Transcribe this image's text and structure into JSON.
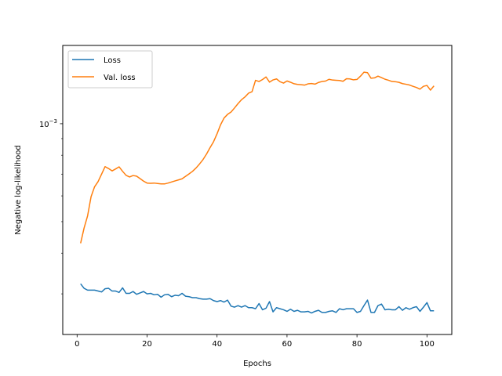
{
  "chart_data": {
    "type": "line",
    "title": "",
    "xlabel": "Epochs",
    "ylabel": "Negative log-likelihood",
    "yscale": "log",
    "xlim": [
      -4.1,
      107.1
    ],
    "ylim": [
      0.000225,
      0.00174
    ],
    "x_ticks": [
      0,
      20,
      40,
      60,
      80,
      100
    ],
    "x_tick_labels": [
      "0",
      "20",
      "40",
      "60",
      "80",
      "100"
    ],
    "y_ticks": [
      0.001
    ],
    "y_tick_labels": [
      {
        "base": "10",
        "exp": "−3"
      }
    ],
    "grid": false,
    "legend_position": "top-left",
    "series": [
      {
        "name": "Loss",
        "color": "#1f77b4",
        "x": [
          1,
          2,
          3,
          4,
          5,
          6,
          7,
          8,
          9,
          10,
          11,
          12,
          13,
          14,
          15,
          16,
          17,
          18,
          19,
          20,
          21,
          22,
          23,
          24,
          25,
          26,
          27,
          28,
          29,
          30,
          31,
          32,
          33,
          34,
          35,
          36,
          37,
          38,
          39,
          40,
          41,
          42,
          43,
          44,
          45,
          46,
          47,
          48,
          49,
          50,
          51,
          52,
          53,
          54,
          55,
          56,
          57,
          58,
          59,
          60,
          61,
          62,
          63,
          64,
          65,
          66,
          67,
          68,
          69,
          70,
          71,
          72,
          73,
          74,
          75,
          76,
          77,
          78,
          79,
          80,
          81,
          82,
          83,
          84,
          85,
          86,
          87,
          88,
          89,
          90,
          91,
          92,
          93,
          94,
          95,
          96,
          97,
          98,
          99,
          100,
          101,
          102
        ],
        "values": [
          0.000322,
          0.000312,
          0.000308,
          0.000308,
          0.000308,
          0.000306,
          0.000304,
          0.000311,
          0.000312,
          0.000306,
          0.000306,
          0.000303,
          0.000313,
          0.000301,
          0.000301,
          0.000305,
          0.000299,
          0.000302,
          0.000305,
          0.0003,
          0.000301,
          0.000298,
          0.000299,
          0.000293,
          0.000298,
          0.000299,
          0.000294,
          0.000297,
          0.000296,
          0.000301,
          0.000295,
          0.000294,
          0.000292,
          0.000292,
          0.00029,
          0.000289,
          0.000289,
          0.00029,
          0.000286,
          0.000284,
          0.000286,
          0.000283,
          0.000287,
          0.000275,
          0.000273,
          0.000276,
          0.000273,
          0.000276,
          0.000272,
          0.000272,
          0.00027,
          0.00028,
          0.000268,
          0.000271,
          0.000284,
          0.000264,
          0.000272,
          0.00027,
          0.000268,
          0.000265,
          0.000269,
          0.000265,
          0.000267,
          0.000264,
          0.000264,
          0.000265,
          0.000262,
          0.000265,
          0.000267,
          0.000263,
          0.000263,
          0.000265,
          0.000266,
          0.000263,
          0.00027,
          0.000268,
          0.00027,
          0.00027,
          0.00027,
          0.000263,
          0.000265,
          0.000276,
          0.000287,
          0.000263,
          0.000263,
          0.000276,
          0.000279,
          0.000268,
          0.000269,
          0.000268,
          0.000268,
          0.000274,
          0.000267,
          0.000272,
          0.000269,
          0.000272,
          0.000274,
          0.000265,
          0.000273,
          0.000282,
          0.000266,
          0.000266
        ]
      },
      {
        "name": "Val. loss",
        "color": "#ff7f0e",
        "x": [
          1,
          2,
          3,
          4,
          5,
          6,
          7,
          8,
          9,
          10,
          11,
          12,
          13,
          14,
          15,
          16,
          17,
          18,
          19,
          20,
          21,
          22,
          23,
          24,
          25,
          26,
          27,
          28,
          29,
          30,
          31,
          32,
          33,
          34,
          35,
          36,
          37,
          38,
          39,
          40,
          41,
          42,
          43,
          44,
          45,
          46,
          47,
          48,
          49,
          50,
          51,
          52,
          53,
          54,
          55,
          56,
          57,
          58,
          59,
          60,
          61,
          62,
          63,
          64,
          65,
          66,
          67,
          68,
          69,
          70,
          71,
          72,
          73,
          74,
          75,
          76,
          77,
          78,
          79,
          80,
          81,
          82,
          83,
          84,
          85,
          86,
          87,
          88,
          89,
          90,
          91,
          92,
          93,
          94,
          95,
          96,
          97,
          98,
          99,
          100,
          101,
          102
        ],
        "values": [
          0.000429,
          0.000478,
          0.000521,
          0.000597,
          0.00064,
          0.000664,
          0.0007,
          0.000738,
          0.000728,
          0.000716,
          0.000726,
          0.000737,
          0.000714,
          0.000694,
          0.000686,
          0.000693,
          0.00069,
          0.000678,
          0.000666,
          0.000657,
          0.000656,
          0.000657,
          0.000655,
          0.000653,
          0.000653,
          0.000657,
          0.000662,
          0.000667,
          0.000672,
          0.000677,
          0.000689,
          0.000701,
          0.000714,
          0.000731,
          0.000752,
          0.000776,
          0.000807,
          0.000844,
          0.00088,
          0.000931,
          0.000992,
          0.001041,
          0.001068,
          0.001086,
          0.001118,
          0.001153,
          0.001185,
          0.001209,
          0.001241,
          0.001254,
          0.001359,
          0.001348,
          0.001367,
          0.001392,
          0.001342,
          0.001363,
          0.001373,
          0.001346,
          0.001333,
          0.001353,
          0.001341,
          0.001327,
          0.001321,
          0.001318,
          0.001314,
          0.001326,
          0.001329,
          0.001323,
          0.001339,
          0.001348,
          0.001352,
          0.001369,
          0.001362,
          0.00136,
          0.001358,
          0.00135,
          0.001375,
          0.001373,
          0.001364,
          0.001368,
          0.0014,
          0.00144,
          0.001435,
          0.00138,
          0.001383,
          0.0014,
          0.001386,
          0.00137,
          0.00136,
          0.001348,
          0.001346,
          0.00134,
          0.001328,
          0.001322,
          0.001315,
          0.001303,
          0.001292,
          0.001277,
          0.001303,
          0.001311,
          0.001268,
          0.001307
        ]
      }
    ]
  }
}
